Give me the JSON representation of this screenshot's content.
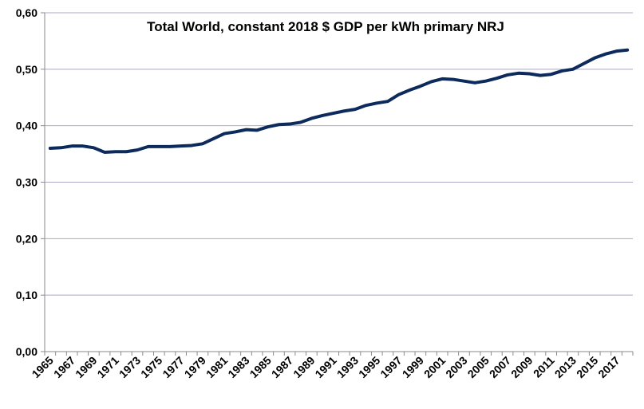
{
  "chart_data": {
    "type": "line",
    "title": "Total World, constant 2018 $ GDP per kWh primary NRJ",
    "xlabel": "",
    "ylabel": "",
    "ylim": [
      0,
      0.6
    ],
    "yticks": [
      "0,00",
      "0,10",
      "0,20",
      "0,30",
      "0,40",
      "0,50",
      "0,60"
    ],
    "xtick_labels": [
      "1965",
      "1967",
      "1969",
      "1971",
      "1973",
      "1975",
      "1977",
      "1979",
      "1981",
      "1983",
      "1985",
      "1987",
      "1989",
      "1991",
      "1993",
      "1995",
      "1997",
      "1999",
      "2001",
      "2003",
      "2005",
      "2007",
      "2009",
      "2011",
      "2013",
      "2015",
      "2017"
    ],
    "grid": true,
    "legend": "none",
    "line_color": "#0d2a5c",
    "x": [
      1965,
      1966,
      1967,
      1968,
      1969,
      1970,
      1971,
      1972,
      1973,
      1974,
      1975,
      1976,
      1977,
      1978,
      1979,
      1980,
      1981,
      1982,
      1983,
      1984,
      1985,
      1986,
      1987,
      1988,
      1989,
      1990,
      1991,
      1992,
      1993,
      1994,
      1995,
      1996,
      1997,
      1998,
      1999,
      2000,
      2001,
      2002,
      2003,
      2004,
      2005,
      2006,
      2007,
      2008,
      2009,
      2010,
      2011,
      2012,
      2013,
      2014,
      2015,
      2016,
      2017,
      2018
    ],
    "values": [
      0.36,
      0.361,
      0.364,
      0.364,
      0.361,
      0.353,
      0.354,
      0.354,
      0.357,
      0.363,
      0.363,
      0.363,
      0.364,
      0.365,
      0.368,
      0.377,
      0.386,
      0.389,
      0.393,
      0.392,
      0.398,
      0.402,
      0.403,
      0.406,
      0.413,
      0.418,
      0.422,
      0.426,
      0.429,
      0.436,
      0.44,
      0.443,
      0.455,
      0.463,
      0.47,
      0.478,
      0.483,
      0.482,
      0.479,
      0.476,
      0.479,
      0.484,
      0.49,
      0.493,
      0.492,
      0.489,
      0.491,
      0.497,
      0.5,
      0.51,
      0.52,
      0.527,
      0.532,
      0.534
    ]
  }
}
